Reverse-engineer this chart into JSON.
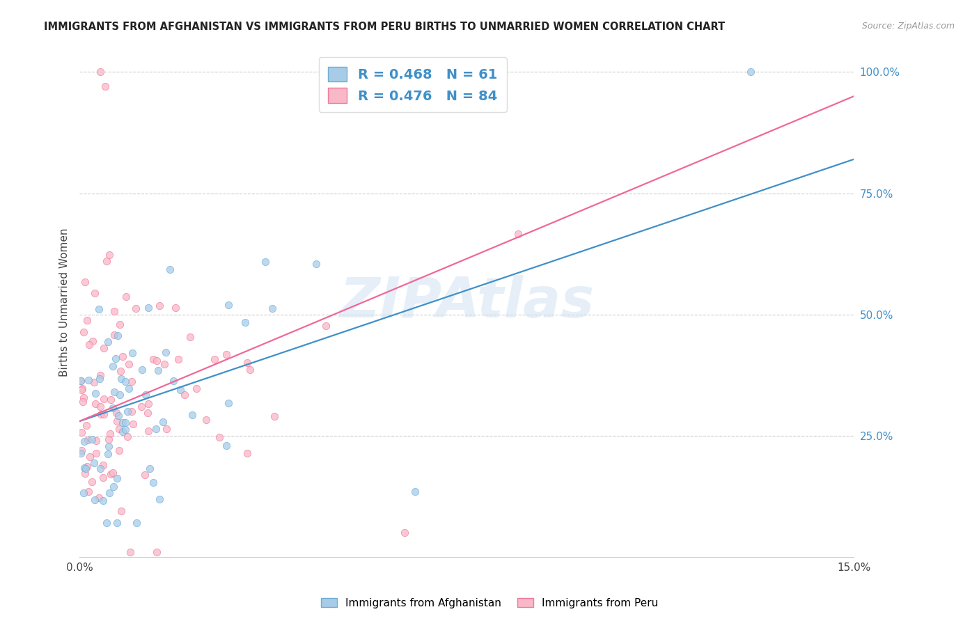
{
  "title": "IMMIGRANTS FROM AFGHANISTAN VS IMMIGRANTS FROM PERU BIRTHS TO UNMARRIED WOMEN CORRELATION CHART",
  "source": "Source: ZipAtlas.com",
  "ylabel": "Births to Unmarried Women",
  "xlim": [
    0.0,
    0.15
  ],
  "ylim": [
    0.0,
    1.05
  ],
  "xticks": [
    0.0,
    0.03,
    0.06,
    0.09,
    0.12,
    0.15
  ],
  "xtick_labels": [
    "0.0%",
    "",
    "",
    "",
    "",
    "15.0%"
  ],
  "ytick_labels_right": [
    "",
    "25.0%",
    "50.0%",
    "75.0%",
    "100.0%"
  ],
  "yticks_right": [
    0.0,
    0.25,
    0.5,
    0.75,
    1.0
  ],
  "afghanistan_color": "#a8cce8",
  "afghanistan_color_edge": "#6aaed6",
  "peru_color": "#f9b8c8",
  "peru_color_edge": "#f07898",
  "trend_afghanistan_color": "#4090c8",
  "trend_peru_color": "#f06898",
  "R_afghanistan": 0.468,
  "N_afghanistan": 61,
  "R_peru": 0.476,
  "N_peru": 84,
  "legend_label_afghanistan": "Immigrants from Afghanistan",
  "legend_label_peru": "Immigrants from Peru",
  "watermark": "ZIPAtlas",
  "af_trend_x0": 0.0,
  "af_trend_y0": 0.28,
  "af_trend_x1": 0.15,
  "af_trend_y1": 0.82,
  "pe_trend_x0": 0.0,
  "pe_trend_y0": 0.28,
  "pe_trend_x1": 0.15,
  "pe_trend_y1": 0.95
}
